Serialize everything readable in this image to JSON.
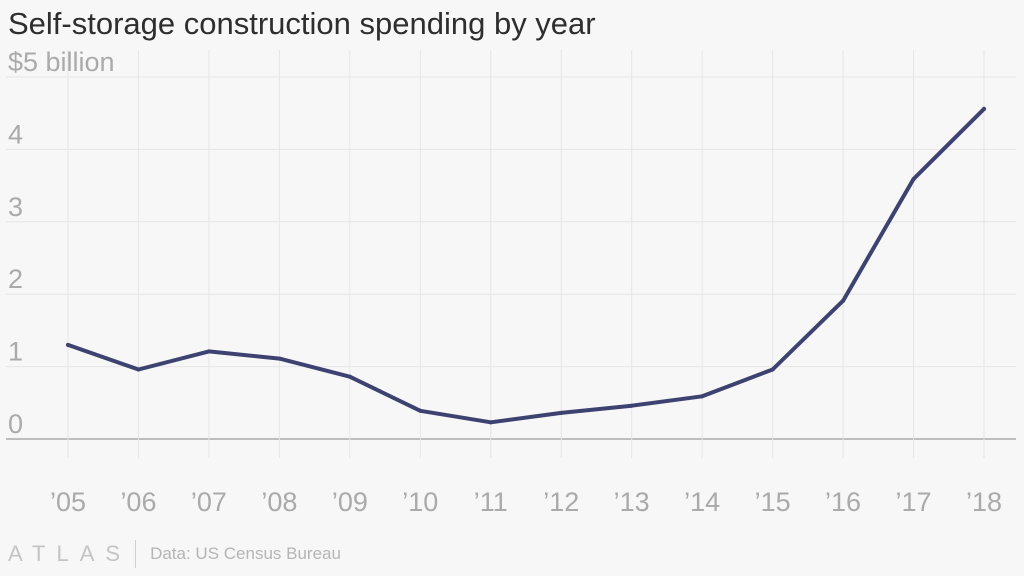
{
  "title": "Self-storage construction spending by year",
  "footer": {
    "brand": "ATLAS",
    "source": "Data: US Census Bureau"
  },
  "colors": {
    "line": "#3d4270",
    "grid": "#e6e6e6",
    "baseline": "#9a9a9a",
    "tick_text": "#aaaaaa"
  },
  "chart_data": {
    "type": "line",
    "title": "Self-storage construction spending by year",
    "xlabel": "",
    "ylabel": "$ billion",
    "categories": [
      "’05",
      "’06",
      "’07",
      "’08",
      "’09",
      "’10",
      "’11",
      "’12",
      "’13",
      "’14",
      "’15",
      "’16",
      "’17",
      "’18"
    ],
    "series": [
      {
        "name": "Self-storage construction spending",
        "values": [
          1.3,
          0.96,
          1.21,
          1.11,
          0.86,
          0.39,
          0.23,
          0.36,
          0.46,
          0.59,
          0.96,
          1.91,
          3.59,
          4.56
        ]
      }
    ],
    "ylim": [
      0,
      5
    ],
    "yticks": [
      0,
      1,
      2,
      3,
      4,
      5
    ],
    "ytick_labels": [
      "0",
      "1",
      "2",
      "3",
      "4",
      "$5 billion"
    ],
    "grid": true
  }
}
